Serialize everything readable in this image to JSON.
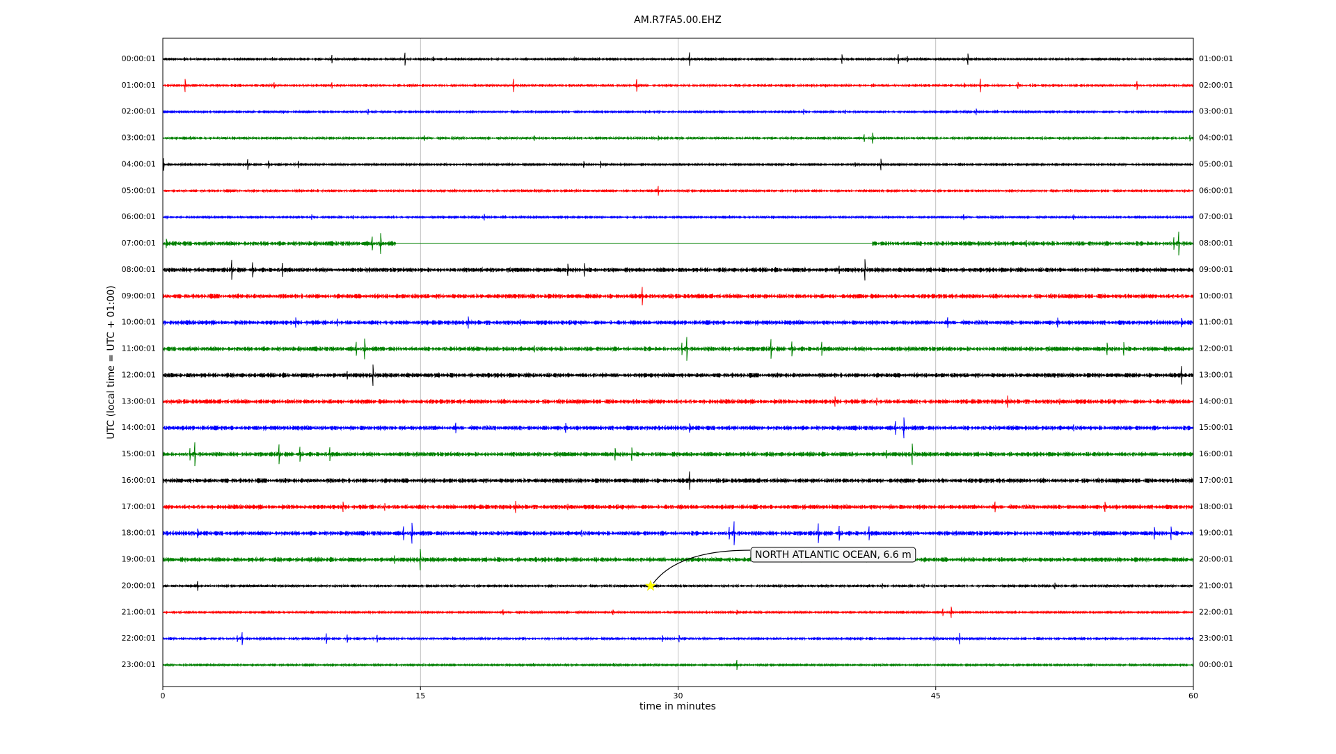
{
  "chart_data": {
    "type": "dayplot",
    "title": "AM.R7FA5.00.EHZ",
    "xlabel": "time in minutes",
    "ylabel": "UTC (local time = UTC + 01:00)",
    "xlim": [
      0,
      60
    ],
    "xticks": [
      0,
      15,
      30,
      45,
      60
    ],
    "grid": true,
    "colors": [
      "#000000",
      "#ff0000",
      "#0000ff",
      "#008000"
    ],
    "left_labels": [
      "00:00:01",
      "01:00:01",
      "02:00:01",
      "03:00:01",
      "04:00:01",
      "05:00:01",
      "06:00:01",
      "07:00:01",
      "08:00:01",
      "09:00:01",
      "10:00:01",
      "11:00:01",
      "12:00:01",
      "13:00:01",
      "14:00:01",
      "15:00:01",
      "16:00:01",
      "17:00:01",
      "18:00:01",
      "19:00:01",
      "20:00:01",
      "21:00:01",
      "22:00:01",
      "23:00:01"
    ],
    "right_labels": [
      "01:00:01",
      "02:00:01",
      "03:00:01",
      "04:00:01",
      "05:00:01",
      "06:00:01",
      "07:00:01",
      "08:00:01",
      "09:00:01",
      "10:00:01",
      "11:00:01",
      "12:00:01",
      "13:00:01",
      "14:00:01",
      "15:00:01",
      "16:00:01",
      "17:00:01",
      "18:00:01",
      "19:00:01",
      "20:00:01",
      "21:00:01",
      "22:00:01",
      "23:00:01",
      "00:00:01"
    ],
    "gaps": [
      {
        "row": "07:00:01",
        "x": [
          13.6,
          41.3
        ]
      }
    ],
    "event": {
      "x": 28.4,
      "row": "20:00:01",
      "label": "NORTH ATLANTIC OCEAN, 6.6 m"
    }
  }
}
